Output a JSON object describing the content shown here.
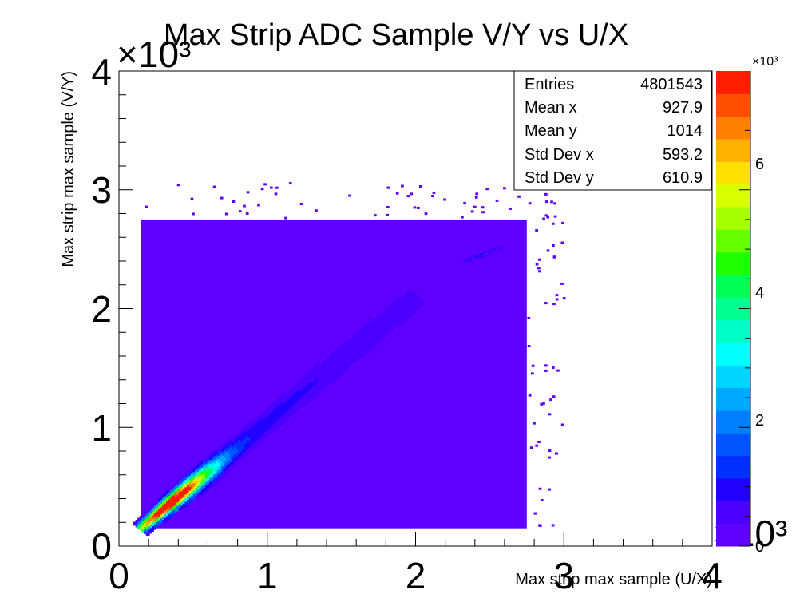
{
  "chart_data": {
    "type": "heatmap",
    "title": "Max Strip ADC Sample V/Y vs U/X",
    "xlabel": "Max strip max sample (U/X)",
    "ylabel": "Max strip max sample (V/Y)",
    "x_multiplier": "×10³",
    "y_multiplier": "×10³",
    "z_multiplier": "×10³",
    "xlim": [
      0,
      4000
    ],
    "ylim": [
      0,
      4000
    ],
    "zlim": [
      0,
      8000
    ],
    "x_tick_labels": [
      "0",
      "1",
      "2",
      "3",
      "4"
    ],
    "y_tick_labels": [
      "0",
      "1",
      "2",
      "3",
      "4"
    ],
    "z_tick_labels": [
      "0",
      "2",
      "4",
      "6"
    ],
    "stats": {
      "rows": [
        {
          "label": "Entries",
          "value": "4801543"
        },
        {
          "label": "Mean x",
          "value": "927.9"
        },
        {
          "label": "Mean y",
          "value": "1014"
        },
        {
          "label": "Std Dev x",
          "value": "593.2"
        },
        {
          "label": "Std Dev y",
          "value": "610.9"
        }
      ]
    },
    "palette": [
      "#5f00ff",
      "#4b00ff",
      "#2200ff",
      "#0030ff",
      "#0055ff",
      "#0080ff",
      "#00a8ff",
      "#00d4ff",
      "#00ffff",
      "#00ffc8",
      "#00ff90",
      "#00ff55",
      "#20ff00",
      "#66ff00",
      "#a8ff00",
      "#d8ff00",
      "#ffe000",
      "#ffb000",
      "#ff8000",
      "#ff5000",
      "#ff1e00"
    ],
    "distribution": {
      "background_region": {
        "x": [
          150,
          2750
        ],
        "y": [
          150,
          2750
        ],
        "approx_count": 300
      },
      "diagonal_band": {
        "from": [
          150,
          150
        ],
        "to": [
          2000,
          2100
        ],
        "peak": [
          350,
          400
        ],
        "peak_count": 7800
      },
      "secondary_blob": {
        "center": [
          2450,
          2450
        ],
        "approx_count": 900
      }
    }
  }
}
